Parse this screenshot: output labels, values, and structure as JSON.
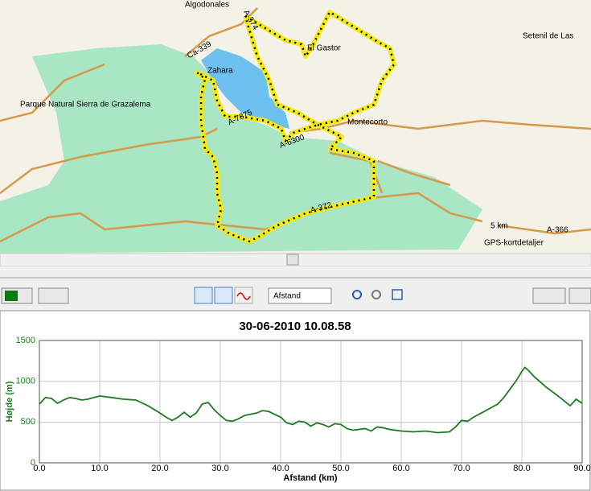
{
  "map": {
    "labels": [
      "Algodonales",
      "A-374",
      "Setenil de Las",
      "El Gastor",
      "Ca-339",
      "Zahara",
      "Parque Natural Sierra de Grazalema",
      "A-7375",
      "Montecorto",
      "A-6300",
      "A-372",
      "A-366"
    ],
    "scale": "5 km",
    "caption": "GPS-kortdetaljer"
  },
  "toolbar": {
    "dropdown": "Afstand"
  },
  "chart_data": {
    "type": "line",
    "title": "30-06-2010 10.08.58",
    "xlabel": "Afstand (km)",
    "ylabel": "Højde (m)",
    "x": [
      0,
      1,
      2,
      3,
      4,
      5,
      6,
      7,
      8,
      10,
      12,
      14,
      16,
      18,
      20,
      21,
      22,
      23,
      24,
      25,
      26,
      27,
      28,
      29,
      30,
      31,
      32,
      33,
      34,
      36,
      37,
      38,
      40,
      41,
      42,
      43,
      44,
      45,
      46,
      47,
      48,
      49,
      50,
      51,
      52,
      54,
      55,
      56,
      57,
      58,
      60,
      62,
      64,
      66,
      68,
      69,
      70,
      71,
      72,
      74,
      76,
      77,
      78,
      79,
      80,
      80.5,
      81,
      82,
      84,
      86,
      87,
      88,
      89,
      90
    ],
    "series": [
      {
        "name": "Højde (m)",
        "color": "#217a21",
        "values": [
          720,
          800,
          790,
          730,
          770,
          800,
          790,
          770,
          780,
          820,
          800,
          780,
          770,
          700,
          610,
          560,
          520,
          560,
          620,
          560,
          610,
          720,
          740,
          650,
          580,
          520,
          510,
          540,
          580,
          610,
          640,
          630,
          560,
          490,
          470,
          510,
          500,
          450,
          490,
          470,
          440,
          480,
          470,
          420,
          400,
          420,
          390,
          440,
          430,
          410,
          390,
          380,
          390,
          370,
          380,
          440,
          520,
          510,
          560,
          640,
          720,
          800,
          900,
          1000,
          1120,
          1170,
          1140,
          1060,
          930,
          820,
          760,
          700,
          780,
          730
        ]
      }
    ],
    "xlim": [
      0,
      90
    ],
    "ylim": [
      0,
      1500
    ],
    "xticks": [
      {
        "value": 0,
        "label": "0.0"
      },
      {
        "value": 10,
        "label": "10.0"
      },
      {
        "value": 20,
        "label": "20.0"
      },
      {
        "value": 30,
        "label": "30.0"
      },
      {
        "value": 40,
        "label": "40.0"
      },
      {
        "value": 50,
        "label": "50.0"
      },
      {
        "value": 60,
        "label": "60.0"
      },
      {
        "value": 70,
        "label": "70.0"
      },
      {
        "value": 80,
        "label": "80.0"
      },
      {
        "value": 90,
        "label": "90.0"
      }
    ],
    "yticks": [
      0,
      500,
      1000,
      1500
    ],
    "grid": true
  }
}
